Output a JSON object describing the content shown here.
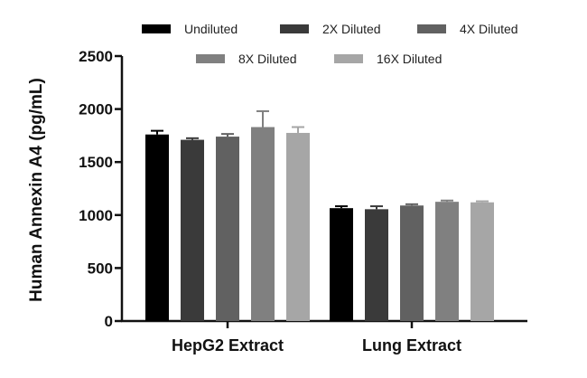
{
  "chart_data": {
    "type": "bar",
    "title": "",
    "xlabel": "",
    "ylabel": "Human Annexin A4 (pg/mL)",
    "ylim": [
      0,
      2500
    ],
    "yticks": [
      0,
      500,
      1000,
      1500,
      2000,
      2500
    ],
    "categories": [
      "HepG2 Extract",
      "Lung Extract"
    ],
    "series": [
      {
        "name": "Undiluted",
        "color": "#000000",
        "values": [
          1760,
          1065
        ],
        "errors": [
          35,
          18
        ]
      },
      {
        "name": "2X Diluted",
        "color": "#3a3a3a",
        "values": [
          1710,
          1055
        ],
        "errors": [
          15,
          28
        ]
      },
      {
        "name": "4X Diluted",
        "color": "#616161",
        "values": [
          1740,
          1090
        ],
        "errors": [
          25,
          12
        ]
      },
      {
        "name": "8X Diluted",
        "color": "#808080",
        "values": [
          1830,
          1125
        ],
        "errors": [
          150,
          12
        ]
      },
      {
        "name": "16X Diluted",
        "color": "#a6a6a6",
        "values": [
          1775,
          1120
        ],
        "errors": [
          55,
          10
        ]
      }
    ],
    "grid": false,
    "legend_position": "top"
  }
}
